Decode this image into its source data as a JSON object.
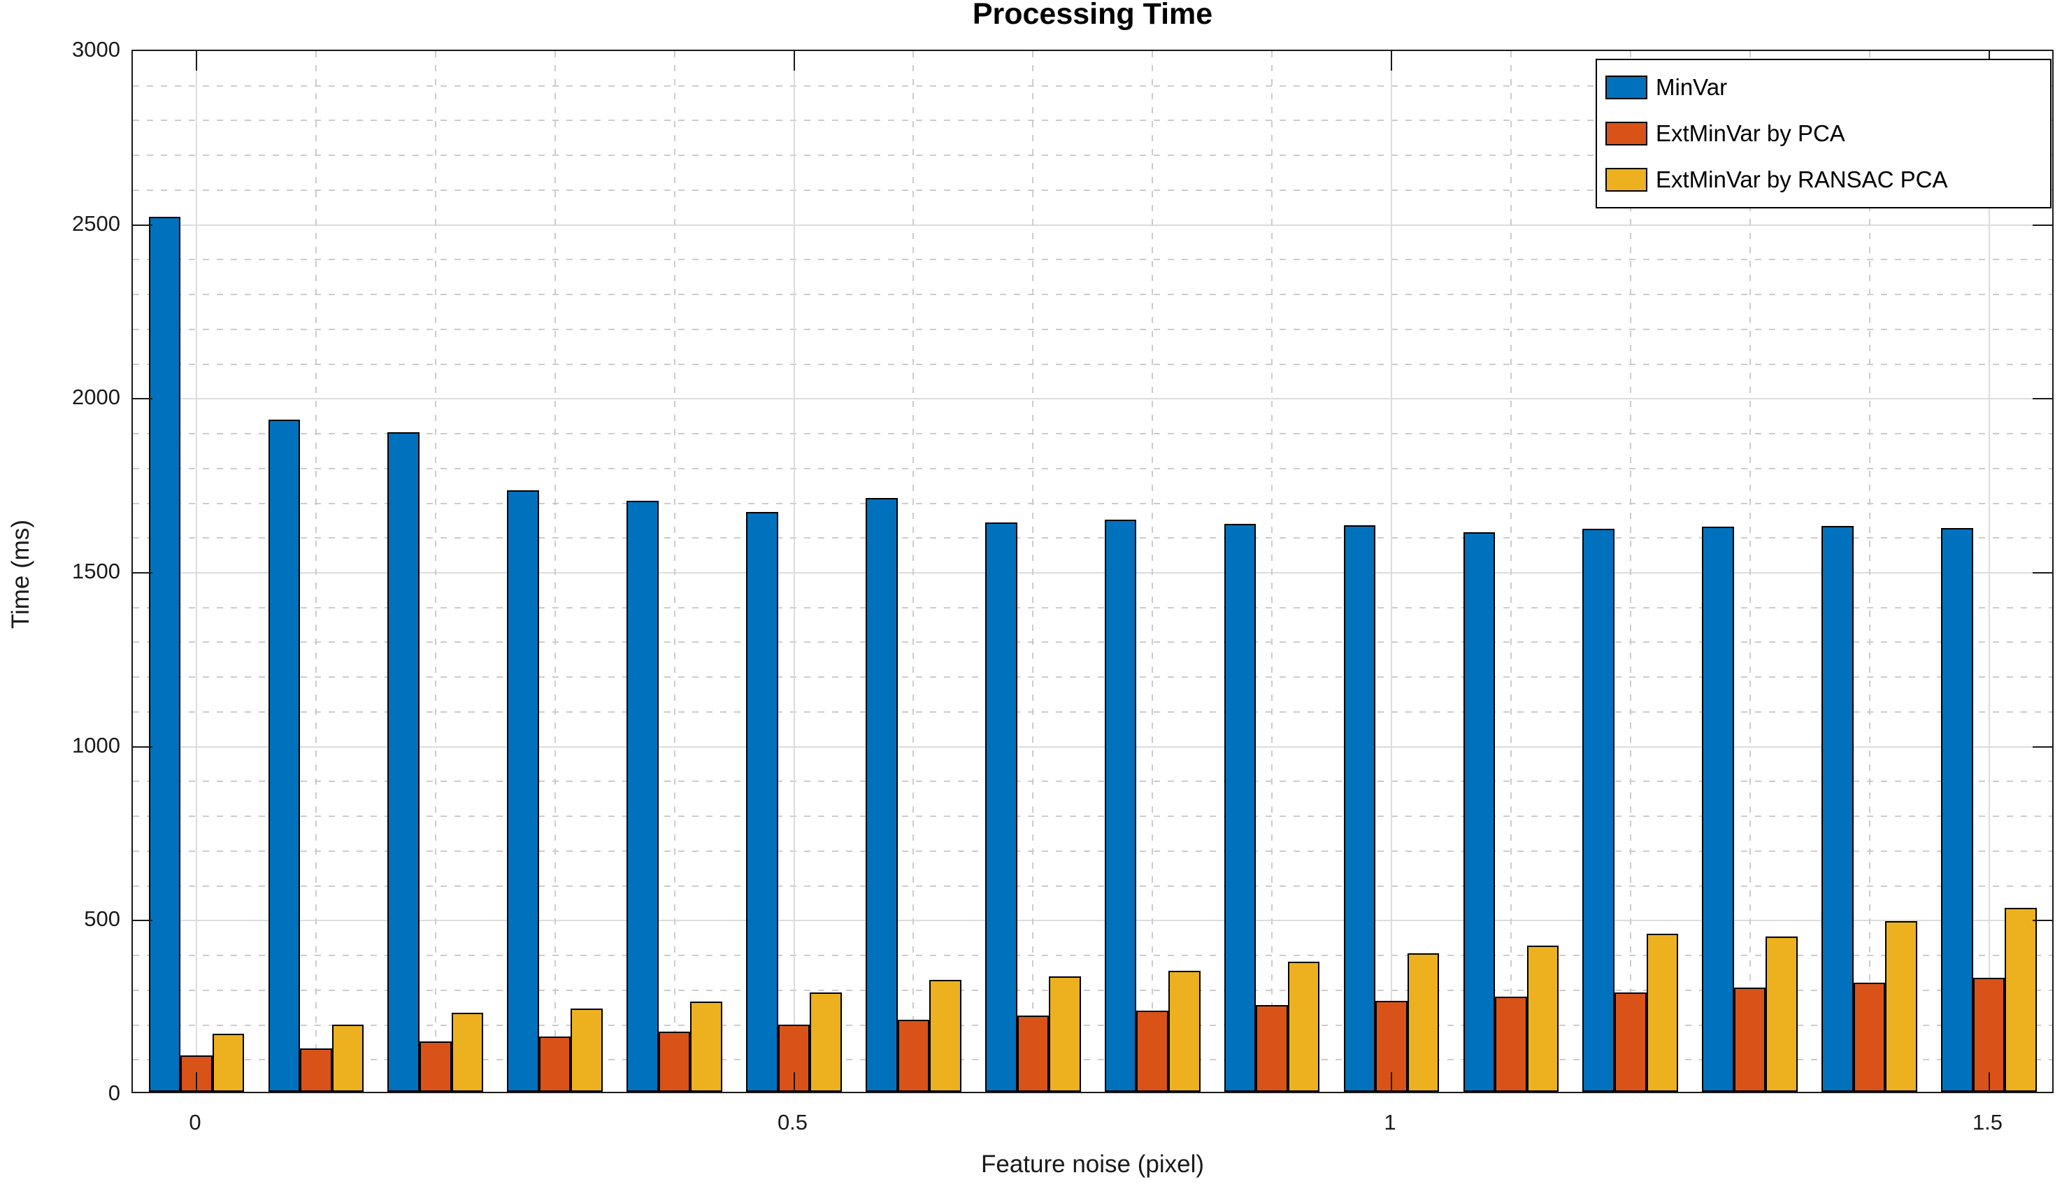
{
  "title": "Processing Time",
  "x_axis": {
    "label": "Feature noise (pixel)",
    "tick_labels": [
      "0",
      "0.5",
      "1",
      "1.5"
    ],
    "tick_values": [
      0,
      0.5,
      1,
      1.5
    ]
  },
  "y_axis": {
    "label": "Time (ms)",
    "tick_labels": [
      "0",
      "500",
      "1000",
      "1500",
      "2000",
      "2500",
      "3000"
    ],
    "tick_values": [
      0,
      500,
      1000,
      1500,
      2000,
      2500,
      3000
    ]
  },
  "legend": {
    "position": "top-right",
    "entries": [
      "MinVar",
      "ExtMinVar by PCA",
      "ExtMinVar by RANSAC PCA"
    ]
  },
  "chart_data": {
    "type": "bar",
    "title": "Processing Time",
    "xlabel": "Feature noise (pixel)",
    "ylabel": "Time (ms)",
    "x": [
      0,
      0.1,
      0.2,
      0.3,
      0.4,
      0.5,
      0.6,
      0.7,
      0.8,
      0.9,
      1.0,
      1.1,
      1.2,
      1.3,
      1.4,
      1.5
    ],
    "series": [
      {
        "name": "MinVar",
        "color": "#0072BD",
        "values": [
          2515,
          1933,
          1896,
          1730,
          1700,
          1666,
          1708,
          1637,
          1645,
          1632,
          1628,
          1609,
          1618,
          1624,
          1626,
          1620
        ]
      },
      {
        "name": "ExtMinVar by PCA",
        "color": "#D95319",
        "values": [
          105,
          124,
          145,
          158,
          172,
          193,
          207,
          220,
          234,
          249,
          261,
          273,
          286,
          300,
          314,
          327
        ]
      },
      {
        "name": "ExtMinVar by RANSAC PCA",
        "color": "#EDB120",
        "values": [
          167,
          193,
          228,
          240,
          260,
          285,
          321,
          332,
          348,
          374,
          399,
          421,
          455,
          446,
          491,
          529
        ]
      }
    ],
    "ylim": [
      0,
      3000
    ],
    "y_major_step": 500,
    "y_minor_step": 100,
    "x_major_ticks": [
      0,
      0.5,
      1,
      1.5
    ],
    "x_minor_step": 0.1,
    "grid": true,
    "minor_grid": true,
    "legend_position": "top-right",
    "bar_group_width_ratio": 0.8
  }
}
